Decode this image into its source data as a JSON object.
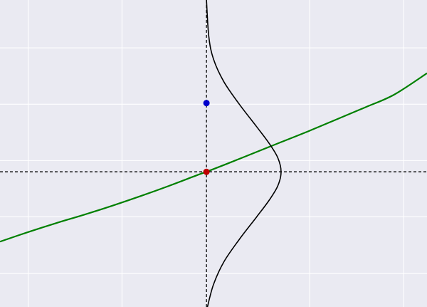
{
  "chart_data": {
    "type": "line",
    "title": "",
    "xlabel": "",
    "ylabel": "",
    "grid": true,
    "legend": "none",
    "xlim": [
      -4.4,
      4.7
    ],
    "ylim": [
      -2.4,
      3.05
    ],
    "x_grid": [
      -3.8,
      -1.8,
      2.2,
      4.2
    ],
    "y_grid": [
      -1.8,
      -0.8,
      0.2,
      1.2,
      2.2
    ],
    "reference_lines": {
      "vertical_x": 0,
      "horizontal_y": 0,
      "style": "dashed",
      "color": "#000000"
    },
    "series": [
      {
        "kind": "curve",
        "color": "#008000",
        "x": [
          -4.4,
          -3.8,
          -3.2,
          -2.6,
          -2.0,
          -1.4,
          -0.8,
          -0.2,
          0.0,
          0.4,
          1.0,
          1.6,
          2.2,
          2.8,
          3.4,
          4.0,
          4.7
        ],
        "y": [
          -1.24,
          -1.07,
          -0.91,
          -0.76,
          -0.6,
          -0.43,
          -0.25,
          -0.06,
          0.0,
          0.13,
          0.33,
          0.53,
          0.73,
          0.94,
          1.15,
          1.37,
          1.75
        ]
      },
      {
        "kind": "density-profile",
        "color": "#000000",
        "y": [
          -2.4,
          -2.0,
          -1.6,
          -1.2,
          -0.8,
          -0.5,
          -0.25,
          0.0,
          0.25,
          0.5,
          0.8,
          1.2,
          1.6,
          2.0,
          2.4,
          3.05
        ],
        "x": [
          0.02,
          0.15,
          0.37,
          0.7,
          1.07,
          1.34,
          1.52,
          1.59,
          1.52,
          1.34,
          1.07,
          0.7,
          0.37,
          0.15,
          0.05,
          0.0
        ]
      }
    ],
    "points": [
      {
        "x": 0.0,
        "y": 0.0,
        "color": "#c00000"
      },
      {
        "x": 0.0,
        "y": 1.22,
        "color": "#0000cc"
      }
    ]
  }
}
